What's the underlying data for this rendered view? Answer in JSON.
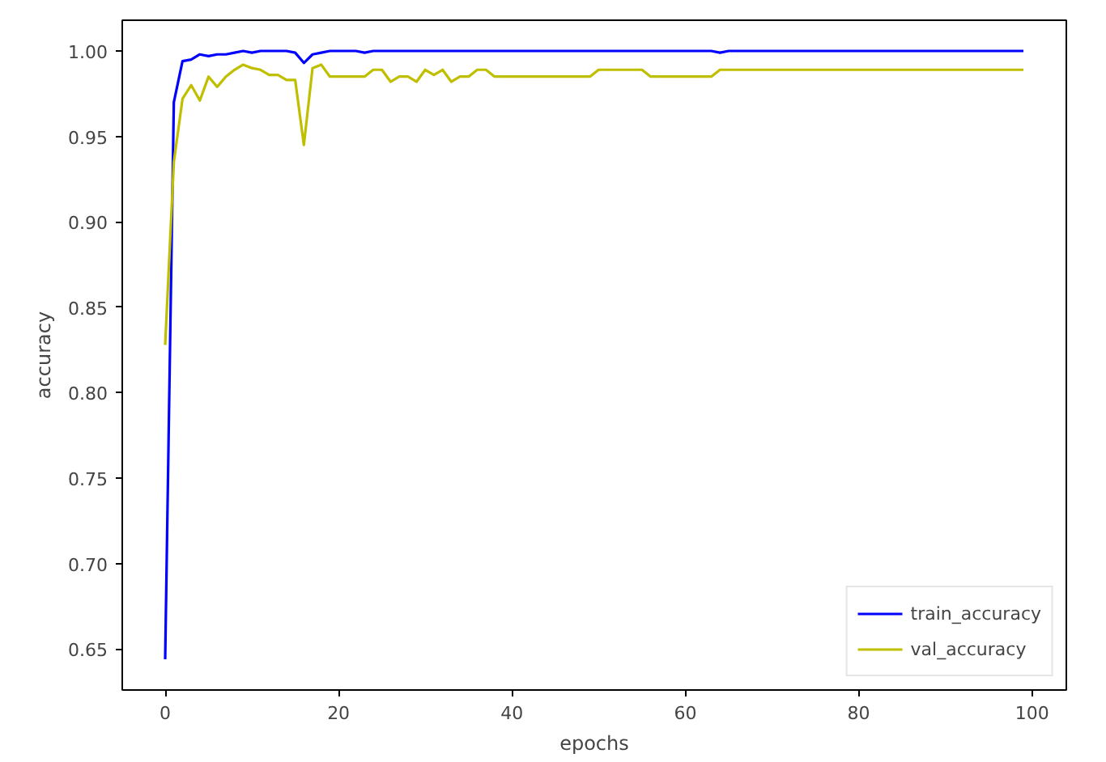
{
  "chart_data": {
    "type": "line",
    "xlabel": "epochs",
    "ylabel": "accuracy",
    "x": [
      0,
      1,
      2,
      3,
      4,
      5,
      6,
      7,
      8,
      9,
      10,
      11,
      12,
      13,
      14,
      15,
      16,
      17,
      18,
      19,
      20,
      21,
      22,
      23,
      24,
      25,
      26,
      27,
      28,
      29,
      30,
      31,
      32,
      33,
      34,
      35,
      36,
      37,
      38,
      39,
      40,
      41,
      42,
      43,
      44,
      45,
      46,
      47,
      48,
      49,
      50,
      51,
      52,
      53,
      54,
      55,
      56,
      57,
      58,
      59,
      60,
      61,
      62,
      63,
      64,
      65,
      66,
      67,
      68,
      69,
      70,
      71,
      72,
      73,
      74,
      75,
      76,
      77,
      78,
      79,
      80,
      81,
      82,
      83,
      84,
      85,
      86,
      87,
      88,
      89,
      90,
      91,
      92,
      93,
      94,
      95,
      96,
      97,
      98,
      99
    ],
    "series": [
      {
        "name": "train_accuracy",
        "color": "#0000ff",
        "values": [
          0.644,
          0.97,
          0.994,
          0.995,
          0.998,
          0.997,
          0.998,
          0.998,
          0.999,
          1.0,
          0.999,
          1.0,
          1.0,
          1.0,
          1.0,
          0.999,
          0.993,
          0.998,
          0.999,
          1.0,
          1.0,
          1.0,
          1.0,
          0.999,
          1.0,
          1.0,
          1.0,
          1.0,
          1.0,
          1.0,
          1.0,
          1.0,
          1.0,
          1.0,
          1.0,
          1.0,
          1.0,
          1.0,
          1.0,
          1.0,
          1.0,
          1.0,
          1.0,
          1.0,
          1.0,
          1.0,
          1.0,
          1.0,
          1.0,
          1.0,
          1.0,
          1.0,
          1.0,
          1.0,
          1.0,
          1.0,
          1.0,
          1.0,
          1.0,
          1.0,
          1.0,
          1.0,
          1.0,
          1.0,
          0.999,
          1.0,
          1.0,
          1.0,
          1.0,
          1.0,
          1.0,
          1.0,
          1.0,
          1.0,
          1.0,
          1.0,
          1.0,
          1.0,
          1.0,
          1.0,
          1.0,
          1.0,
          1.0,
          1.0,
          1.0,
          1.0,
          1.0,
          1.0,
          1.0,
          1.0,
          1.0,
          1.0,
          1.0,
          1.0,
          1.0,
          1.0,
          1.0,
          1.0,
          1.0,
          1.0
        ]
      },
      {
        "name": "val_accuracy",
        "color": "#bfbf00",
        "values": [
          0.828,
          0.935,
          0.972,
          0.98,
          0.971,
          0.985,
          0.979,
          0.985,
          0.989,
          0.992,
          0.99,
          0.989,
          0.986,
          0.986,
          0.983,
          0.983,
          0.945,
          0.99,
          0.992,
          0.985,
          0.985,
          0.985,
          0.985,
          0.985,
          0.989,
          0.989,
          0.982,
          0.985,
          0.985,
          0.982,
          0.989,
          0.986,
          0.989,
          0.982,
          0.985,
          0.985,
          0.989,
          0.989,
          0.985,
          0.985,
          0.985,
          0.985,
          0.985,
          0.985,
          0.985,
          0.985,
          0.985,
          0.985,
          0.985,
          0.985,
          0.989,
          0.989,
          0.989,
          0.989,
          0.989,
          0.989,
          0.985,
          0.985,
          0.985,
          0.985,
          0.985,
          0.985,
          0.985,
          0.985,
          0.989,
          0.989,
          0.989,
          0.989,
          0.989,
          0.989,
          0.989,
          0.989,
          0.989,
          0.989,
          0.989,
          0.989,
          0.989,
          0.989,
          0.989,
          0.989,
          0.989,
          0.989,
          0.989,
          0.989,
          0.989,
          0.989,
          0.989,
          0.989,
          0.989,
          0.989,
          0.989,
          0.989,
          0.989,
          0.989,
          0.989,
          0.989,
          0.989,
          0.989,
          0.989,
          0.989
        ]
      }
    ],
    "xlim": [
      -4.95,
      103.95
    ],
    "ylim": [
      0.626,
      1.018
    ],
    "xticks": [
      0,
      20,
      40,
      60,
      80,
      100
    ],
    "yticks": [
      {
        "value": 0.65,
        "label": "0.65"
      },
      {
        "value": 0.7,
        "label": "0.70"
      },
      {
        "value": 0.75,
        "label": "0.75"
      },
      {
        "value": 0.8,
        "label": "0.80"
      },
      {
        "value": 0.85,
        "label": "0.85"
      },
      {
        "value": 0.9,
        "label": "0.90"
      },
      {
        "value": 0.95,
        "label": "0.95"
      },
      {
        "value": 1.0,
        "label": "1.00"
      }
    ],
    "grid": false,
    "legend": "bottom right",
    "marker": "none",
    "line_style": "solid"
  }
}
